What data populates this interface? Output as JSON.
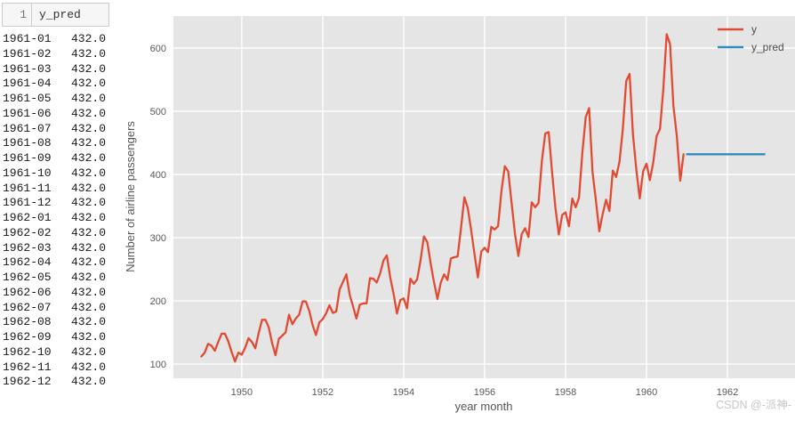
{
  "table": {
    "header": {
      "index": "1",
      "column": "y_pred"
    },
    "rows": [
      {
        "date": "1961-01",
        "value": "432.0"
      },
      {
        "date": "1961-02",
        "value": "432.0"
      },
      {
        "date": "1961-03",
        "value": "432.0"
      },
      {
        "date": "1961-04",
        "value": "432.0"
      },
      {
        "date": "1961-05",
        "value": "432.0"
      },
      {
        "date": "1961-06",
        "value": "432.0"
      },
      {
        "date": "1961-07",
        "value": "432.0"
      },
      {
        "date": "1961-08",
        "value": "432.0"
      },
      {
        "date": "1961-09",
        "value": "432.0"
      },
      {
        "date": "1961-10",
        "value": "432.0"
      },
      {
        "date": "1961-11",
        "value": "432.0"
      },
      {
        "date": "1961-12",
        "value": "432.0"
      },
      {
        "date": "1962-01",
        "value": "432.0"
      },
      {
        "date": "1962-02",
        "value": "432.0"
      },
      {
        "date": "1962-03",
        "value": "432.0"
      },
      {
        "date": "1962-04",
        "value": "432.0"
      },
      {
        "date": "1962-05",
        "value": "432.0"
      },
      {
        "date": "1962-06",
        "value": "432.0"
      },
      {
        "date": "1962-07",
        "value": "432.0"
      },
      {
        "date": "1962-08",
        "value": "432.0"
      },
      {
        "date": "1962-09",
        "value": "432.0"
      },
      {
        "date": "1962-10",
        "value": "432.0"
      },
      {
        "date": "1962-11",
        "value": "432.0"
      },
      {
        "date": "1962-12",
        "value": "432.0"
      }
    ]
  },
  "chart_data": {
    "type": "line",
    "xlabel": "year month",
    "ylabel": "Number of airline passengers",
    "xticks": [
      1950,
      1952,
      1954,
      1956,
      1958,
      1960,
      1962
    ],
    "yticks": [
      100,
      200,
      300,
      400,
      500,
      600
    ],
    "x_range": [
      1948.31,
      1963.67
    ],
    "y_range": [
      77.5,
      650.7
    ],
    "background": "#e5e5e5",
    "grid_color": "#ffffff",
    "grid": true,
    "legend_position": "upper right",
    "series": [
      {
        "name": "y",
        "color": "#e24a33",
        "start_year": 1949.0,
        "step_years": 0.0833333,
        "values": [
          112,
          118,
          132,
          129,
          121,
          135,
          148,
          148,
          136,
          119,
          104,
          118,
          115,
          126,
          141,
          135,
          125,
          149,
          170,
          170,
          158,
          133,
          114,
          140,
          145,
          150,
          178,
          163,
          172,
          178,
          199,
          199,
          184,
          162,
          146,
          166,
          171,
          180,
          193,
          181,
          183,
          218,
          230,
          242,
          209,
          191,
          172,
          194,
          196,
          196,
          236,
          235,
          229,
          243,
          264,
          272,
          237,
          211,
          180,
          201,
          204,
          188,
          235,
          227,
          234,
          264,
          302,
          293,
          259,
          229,
          203,
          229,
          242,
          233,
          267,
          269,
          270,
          315,
          364,
          347,
          312,
          274,
          237,
          278,
          284,
          277,
          317,
          313,
          318,
          374,
          413,
          405,
          355,
          306,
          271,
          306,
          315,
          301,
          356,
          348,
          355,
          422,
          465,
          467,
          404,
          347,
          305,
          336,
          340,
          318,
          362,
          348,
          363,
          435,
          491,
          505,
          404,
          359,
          310,
          337,
          360,
          342,
          406,
          396,
          420,
          472,
          548,
          559,
          463,
          407,
          362,
          405,
          417,
          391,
          419,
          461,
          472,
          535,
          622,
          606,
          508,
          461,
          390,
          432
        ]
      },
      {
        "name": "y_pred",
        "color": "#348abd",
        "start_year": 1961.0,
        "step_years": 0.0833333,
        "values": [
          432,
          432,
          432,
          432,
          432,
          432,
          432,
          432,
          432,
          432,
          432,
          432,
          432,
          432,
          432,
          432,
          432,
          432,
          432,
          432,
          432,
          432,
          432,
          432
        ]
      }
    ]
  },
  "watermark": "CSDN @-派神-"
}
